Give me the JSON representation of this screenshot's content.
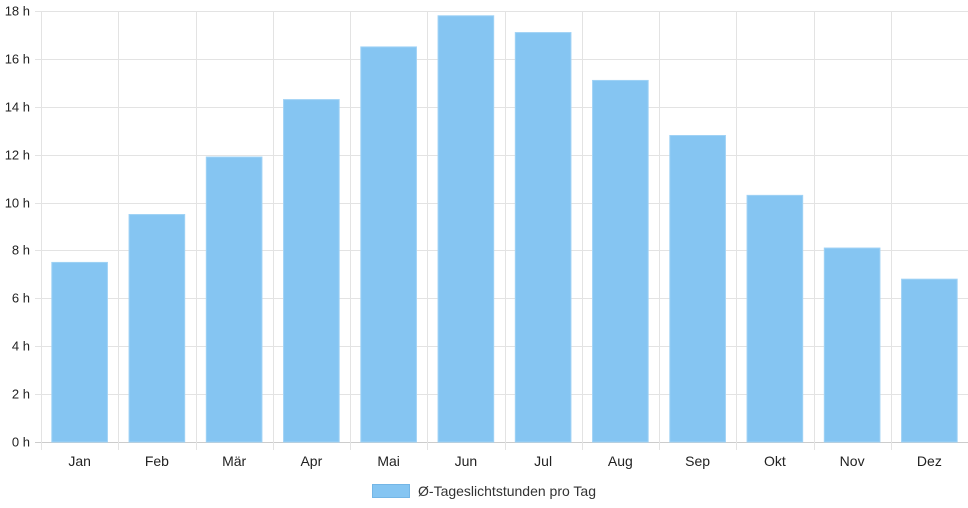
{
  "chart_data": {
    "type": "bar",
    "categories": [
      "Jan",
      "Feb",
      "Mär",
      "Apr",
      "Mai",
      "Jun",
      "Jul",
      "Aug",
      "Sep",
      "Okt",
      "Nov",
      "Dez"
    ],
    "series": [
      {
        "name": "Ø-Tageslichtstunden pro Tag",
        "values": [
          7.5,
          9.5,
          11.9,
          14.3,
          16.5,
          17.8,
          17.1,
          15.1,
          12.8,
          10.3,
          8.1,
          6.8
        ],
        "color": "#85C5F2"
      }
    ],
    "title": "",
    "xlabel": "",
    "ylabel": "",
    "ylim": [
      0,
      18
    ],
    "yticks": [
      0,
      2,
      4,
      6,
      8,
      10,
      12,
      14,
      16,
      18
    ],
    "ytick_labels": [
      "0 h",
      "2 h",
      "4 h",
      "6 h",
      "8 h",
      "10 h",
      "12 h",
      "14 h",
      "16 h",
      "18 h"
    ],
    "grid": true,
    "legend_position": "bottom"
  },
  "legend": {
    "label": "Ø-Tageslichtstunden pro Tag"
  }
}
